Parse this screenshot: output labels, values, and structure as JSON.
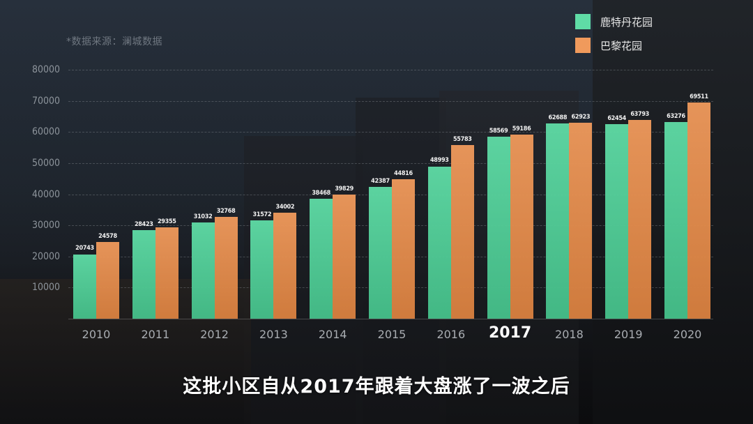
{
  "source_note": "*数据来源：澜城数据",
  "legend": [
    {
      "label": "鹿特丹花园",
      "color": "#5fdca6"
    },
    {
      "label": "巴黎花园",
      "color": "#f09a5c"
    }
  ],
  "subtitle": "这批小区自从2017年跟着大盘涨了一波之后",
  "highlight_year": "2017",
  "chart_data": {
    "type": "bar",
    "title": "",
    "xlabel": "",
    "ylabel": "",
    "ylim": [
      0,
      80000
    ],
    "yticks": [
      10000,
      20000,
      30000,
      40000,
      50000,
      60000,
      70000,
      80000
    ],
    "grid": true,
    "legend_position": "top-right",
    "categories": [
      "2010",
      "2011",
      "2012",
      "2013",
      "2014",
      "2015",
      "2016",
      "2017",
      "2018",
      "2019",
      "2020"
    ],
    "series": [
      {
        "name": "鹿特丹花园",
        "color": "#5fdca6",
        "values": [
          20743,
          28423,
          31032,
          31572,
          38468,
          42387,
          48993,
          58569,
          62688,
          62454,
          63276
        ]
      },
      {
        "name": "巴黎花园",
        "color": "#f09a5c",
        "values": [
          24578,
          29355,
          32768,
          34002,
          39829,
          44816,
          55783,
          59186,
          62923,
          63793,
          69511
        ]
      }
    ],
    "annotations": [
      "*数据来源：澜城数据"
    ]
  }
}
